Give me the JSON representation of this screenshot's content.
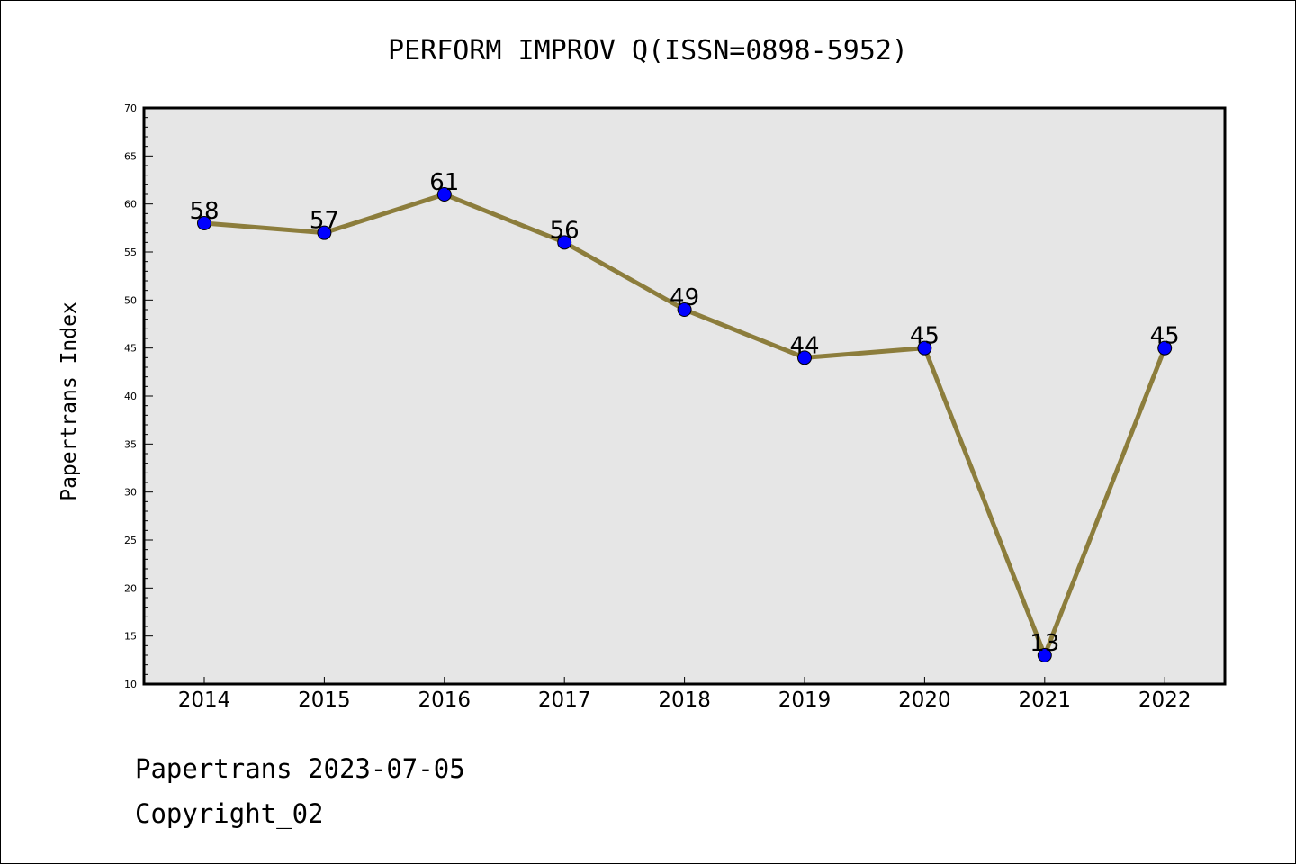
{
  "chart_data": {
    "type": "line",
    "title": "PERFORM IMPROV Q(ISSN=0898-5952)",
    "xlabel": "",
    "ylabel": "Papertrans Index",
    "categories": [
      "2014",
      "2015",
      "2016",
      "2017",
      "2018",
      "2019",
      "2020",
      "2021",
      "2022"
    ],
    "values": [
      58,
      57,
      61,
      56,
      49,
      44,
      45,
      13,
      45
    ],
    "ylim": [
      10,
      70
    ],
    "yticks": [
      "10",
      "15",
      "20",
      "25",
      "30",
      "35",
      "40",
      "45",
      "50",
      "55",
      "60",
      "65",
      "70"
    ],
    "grid": false,
    "legend": "none",
    "colors": {
      "line": "#8c7d3c",
      "marker": "#0000ff",
      "plot_background": "#e6e6e6"
    }
  },
  "footer": {
    "date_line": "Papertrans 2023-07-05",
    "copyright": "Copyright_02"
  }
}
